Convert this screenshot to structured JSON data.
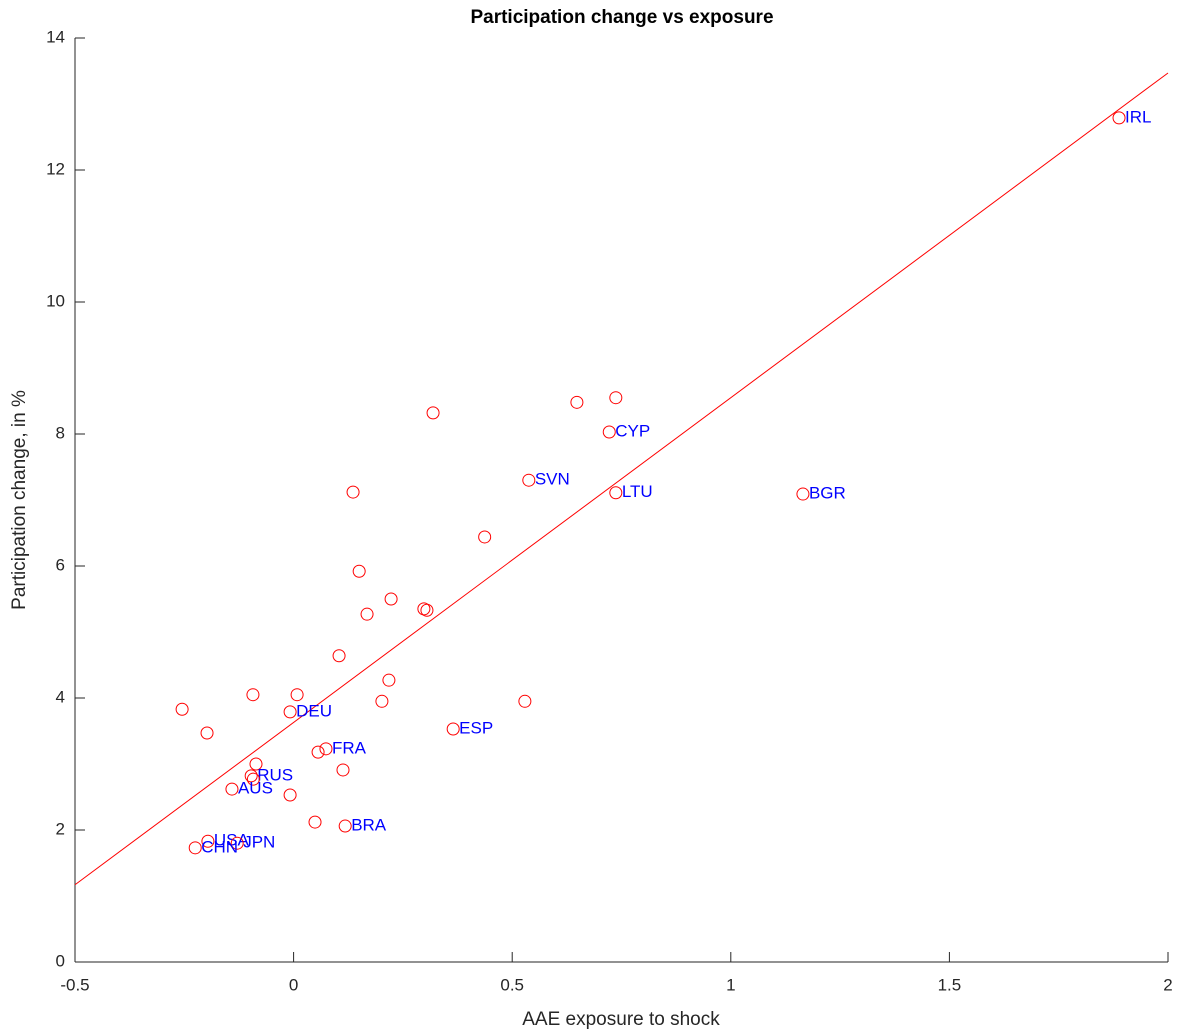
{
  "chart_data": {
    "type": "scatter",
    "title": "Participation change vs exposure",
    "xlabel": "AAE exposure to shock",
    "ylabel": "Participation change, in %",
    "xlim": [
      -0.5,
      2
    ],
    "ylim": [
      0,
      14
    ],
    "xticks": [
      -0.5,
      0,
      0.5,
      1,
      1.5,
      2
    ],
    "yticks": [
      0,
      2,
      4,
      6,
      8,
      10,
      12,
      14
    ],
    "points": {
      "color": "#ff0000",
      "label_color": "#0000ff",
      "x": [
        1.888,
        0.722,
        0.648,
        0.737,
        0.538,
        0.737,
        1.165,
        0.319,
        0.136,
        0.437,
        0.15,
        0.223,
        0.168,
        0.298,
        0.305,
        0.104,
        0.218,
        0.202,
        0.529,
        -0.255,
        -0.093,
        0.008,
        -0.008,
        -0.198,
        0.365,
        0.074,
        0.056,
        -0.086,
        0.113,
        -0.097,
        -0.092,
        -0.141,
        -0.008,
        0.049,
        0.118,
        -0.196,
        -0.129,
        -0.225
      ],
      "y": [
        12.79,
        8.03,
        8.48,
        8.55,
        7.3,
        7.11,
        7.09,
        8.32,
        7.12,
        6.44,
        5.92,
        5.5,
        5.27,
        5.35,
        5.33,
        4.64,
        4.27,
        3.95,
        3.95,
        3.83,
        4.05,
        4.05,
        3.79,
        3.47,
        3.53,
        3.23,
        3.18,
        3.0,
        2.91,
        2.82,
        2.77,
        2.62,
        2.53,
        2.12,
        2.06,
        1.83,
        1.8,
        1.73
      ],
      "labels": [
        "IRL",
        "CYP",
        null,
        null,
        "SVN",
        "LTU",
        "BGR",
        null,
        null,
        null,
        null,
        null,
        null,
        null,
        null,
        null,
        null,
        null,
        null,
        null,
        null,
        null,
        "DEU",
        null,
        "ESP",
        "FRA",
        null,
        null,
        null,
        "RUS",
        null,
        "AUS",
        null,
        null,
        "BRA",
        "USA",
        "JPN",
        "CHN"
      ]
    },
    "fit_line": {
      "color": "#ff0000",
      "x": [
        -0.5,
        2
      ],
      "y": [
        1.17,
        13.47
      ]
    }
  }
}
